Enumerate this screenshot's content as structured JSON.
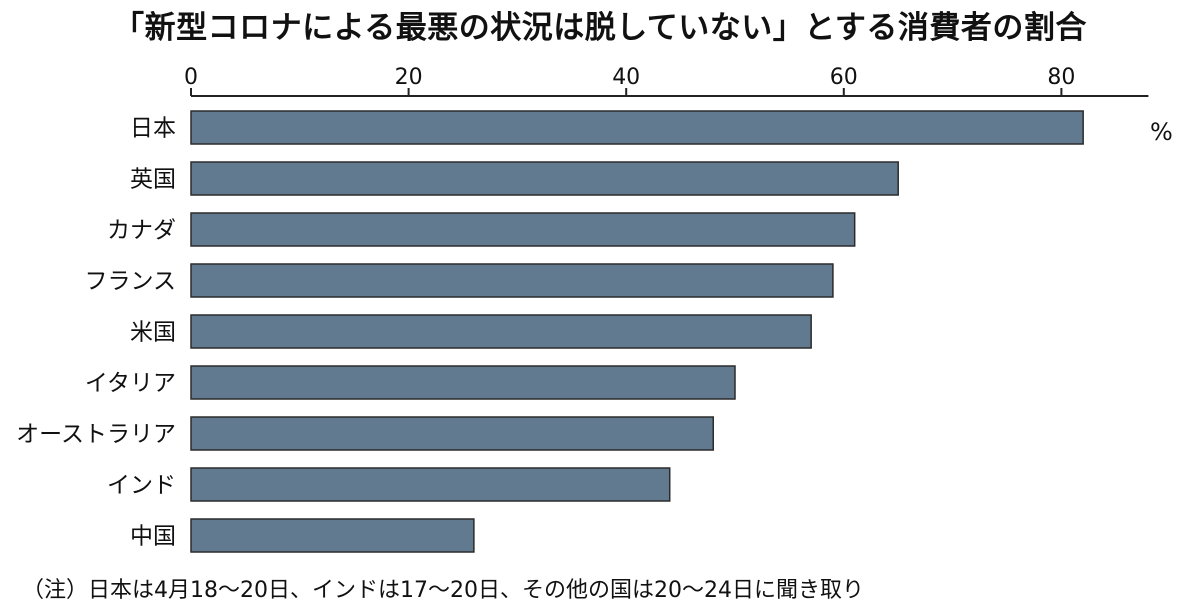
{
  "chart_data": {
    "type": "bar",
    "orientation": "horizontal",
    "title": "「新型コロナによる最悪の状況は脱していない」とする消費者の割合",
    "unit": "%",
    "categories": [
      "日本",
      "英国",
      "カナダ",
      "フランス",
      "米国",
      "イタリア",
      "オーストラリア",
      "インド",
      "中国"
    ],
    "values": [
      82,
      65,
      61,
      59,
      57,
      50,
      48,
      44,
      26
    ],
    "xlim": [
      0,
      88
    ],
    "ticks": [
      0,
      20,
      40,
      60,
      80
    ],
    "grid": false,
    "bar_color": "#627a90",
    "note": "（注）日本は4月18～20日、インドは17～20日、その他の国は20～24日に聞き取り"
  }
}
